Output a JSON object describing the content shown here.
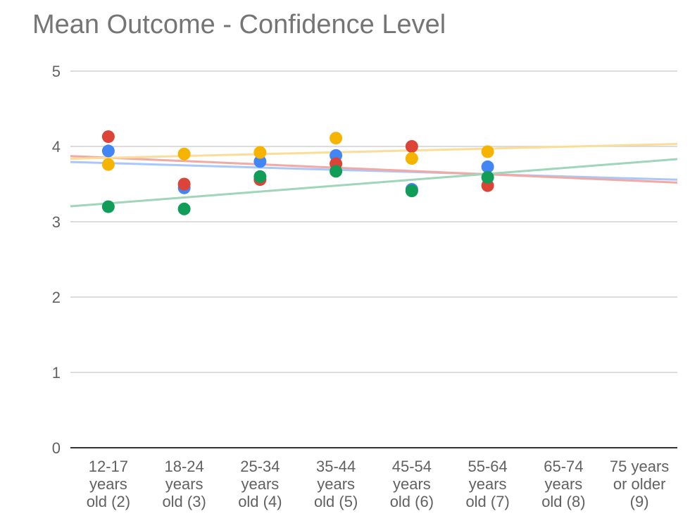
{
  "chart_data": {
    "type": "scatter",
    "title": "Mean Outcome - Confidence Level",
    "xlabel": "",
    "ylabel": "",
    "ylim": [
      0,
      5
    ],
    "yticks": [
      "0",
      "1",
      "2",
      "3",
      "4",
      "5"
    ],
    "grid": true,
    "legend": "none",
    "trendlines": true,
    "categories": [
      [
        "12-17",
        "years",
        "old (2)"
      ],
      [
        "18-24",
        "years",
        "old (3)"
      ],
      [
        "25-34",
        "years",
        "old (4)"
      ],
      [
        "35-44",
        "years",
        "old (5)"
      ],
      [
        "45-54",
        "years",
        "old (6)"
      ],
      [
        "55-64",
        "years",
        "old (7)"
      ],
      [
        "65-74",
        "years",
        "old (8)"
      ],
      [
        "75 years",
        "or older",
        "(9)"
      ]
    ],
    "series": [
      {
        "color": "#4285f4",
        "trend_color": "#a8c7fa",
        "values": [
          3.94,
          3.45,
          3.8,
          3.88,
          3.43,
          3.73,
          null,
          null
        ]
      },
      {
        "color": "#db4437",
        "trend_color": "#f2a9a3",
        "values": [
          4.13,
          3.5,
          3.56,
          3.77,
          4.0,
          3.48,
          null,
          null
        ]
      },
      {
        "color": "#f4b400",
        "trend_color": "#fbdd99",
        "values": [
          3.76,
          3.9,
          3.92,
          4.11,
          3.84,
          3.93,
          null,
          null
        ]
      },
      {
        "color": "#0f9d58",
        "trend_color": "#9fd6b9",
        "values": [
          3.2,
          3.17,
          3.6,
          3.67,
          3.41,
          3.59,
          null,
          null
        ]
      }
    ]
  }
}
